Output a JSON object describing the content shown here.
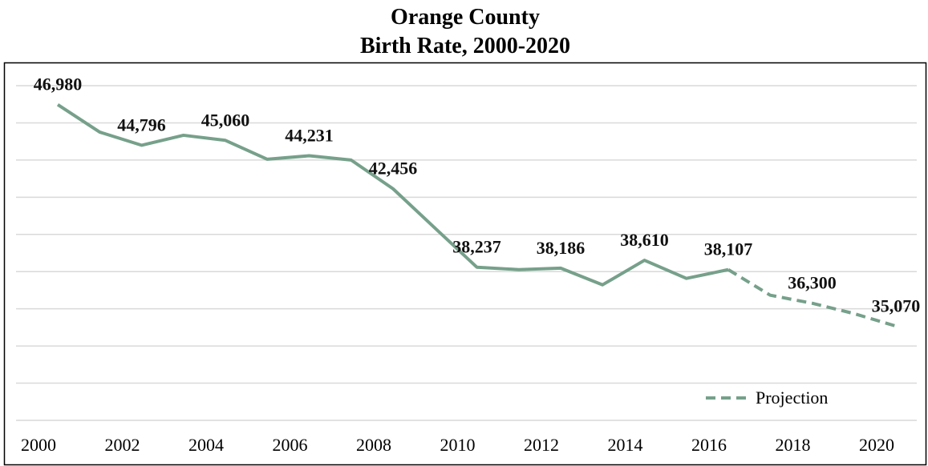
{
  "chart_data": {
    "type": "line",
    "title": "Orange County",
    "subtitle": "Birth Rate, 2000-2020",
    "x": [
      2000,
      2001,
      2002,
      2003,
      2004,
      2005,
      2006,
      2007,
      2008,
      2009,
      2010,
      2011,
      2012,
      2013,
      2014,
      2015,
      2016,
      2017,
      2018,
      2019,
      2020
    ],
    "xlim": [
      2000,
      2020
    ],
    "xticks": [
      2000,
      2002,
      2004,
      2006,
      2008,
      2010,
      2012,
      2014,
      2016,
      2018,
      2020
    ],
    "ylim": [
      30000,
      48000
    ],
    "yticks": [
      30000,
      32000,
      34000,
      36000,
      38000,
      40000,
      42000,
      44000,
      46000,
      48000
    ],
    "grid": true,
    "legend": "lower right",
    "series": [
      {
        "color": "#76a08a",
        "dash": false,
        "values": [
          46980,
          45505,
          44796,
          45333,
          45060,
          44043,
          44231,
          44000,
          42456,
          40344,
          38237,
          38108,
          38186,
          37290,
          38610,
          37634,
          38107,
          null,
          null,
          null,
          null
        ],
        "value_labels": [
          "46,980",
          null,
          "44,796",
          null,
          "45,060",
          null,
          "44,231",
          null,
          "42,456",
          null,
          "38,237",
          null,
          "38,186",
          null,
          "38,610",
          null,
          "38,107",
          null,
          null,
          null,
          null
        ]
      },
      {
        "name": "Projection",
        "color": "#76a08a",
        "dash": true,
        "values": [
          null,
          null,
          null,
          null,
          null,
          null,
          null,
          null,
          null,
          null,
          null,
          null,
          null,
          null,
          null,
          null,
          38107,
          36731,
          36300,
          35742,
          35070
        ],
        "value_labels": [
          null,
          null,
          null,
          null,
          null,
          null,
          null,
          null,
          null,
          null,
          null,
          null,
          null,
          null,
          null,
          null,
          null,
          null,
          "36,300",
          null,
          "35,070"
        ]
      }
    ]
  }
}
